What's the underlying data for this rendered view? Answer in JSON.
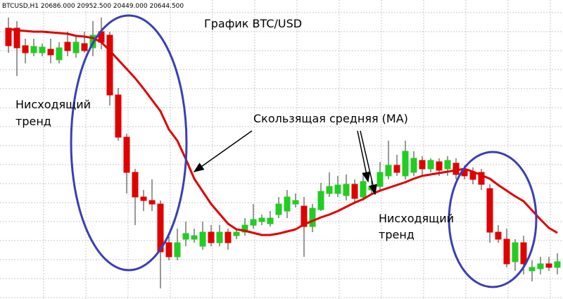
{
  "chart_data": {
    "type": "candlestick",
    "title": "График BTC/USD",
    "symbol_info": "BTCUSD,H1  20686.000 20952.500 20449.000 20644.500",
    "annotations": [
      "Нисходящий",
      "тренд",
      "Скользящая средняя (MA)",
      "Нисходящий",
      "тренд"
    ],
    "ylim": [
      0,
      425
    ],
    "grid": true,
    "up_color": "#22cc22",
    "down_color": "#e00000",
    "open": [
      385,
      385,
      360,
      350,
      350,
      355,
      340,
      365,
      350,
      363,
      357,
      380,
      375,
      290,
      230,
      180,
      145,
      140,
      135,
      80,
      60,
      85,
      85,
      75,
      95,
      80,
      95,
      90,
      95,
      105,
      110,
      107,
      120,
      125,
      135,
      132,
      103,
      127,
      150,
      150,
      147,
      163,
      145,
      155,
      160,
      175,
      190,
      175,
      180,
      197,
      185,
      195,
      185,
      193,
      183,
      180,
      180,
      157,
      95,
      85,
      53,
      80,
      40,
      43,
      50,
      45
    ],
    "high": [
      400,
      395,
      370,
      370,
      363,
      370,
      365,
      380,
      375,
      380,
      395,
      400,
      380,
      300,
      235,
      185,
      155,
      170,
      140,
      95,
      100,
      110,
      100,
      110,
      105,
      105,
      100,
      100,
      115,
      135,
      120,
      125,
      145,
      155,
      150,
      145,
      135,
      165,
      180,
      175,
      177,
      170,
      180,
      170,
      195,
      225,
      205,
      225,
      210,
      203,
      200,
      200,
      203,
      200,
      190,
      187,
      185,
      163,
      105,
      100,
      85,
      90,
      55,
      60,
      60,
      65
    ],
    "low": [
      350,
      317,
      335,
      345,
      345,
      335,
      335,
      345,
      343,
      350,
      345,
      355,
      275,
      225,
      150,
      105,
      125,
      125,
      15,
      55,
      55,
      75,
      80,
      70,
      75,
      75,
      70,
      85,
      90,
      100,
      105,
      103,
      115,
      115,
      130,
      60,
      95,
      125,
      145,
      145,
      140,
      135,
      140,
      150,
      155,
      170,
      175,
      170,
      175,
      175,
      180,
      175,
      175,
      170,
      170,
      163,
      155,
      80,
      80,
      45,
      40,
      35,
      25,
      35,
      40,
      35
    ],
    "close": [
      360,
      357,
      350,
      359,
      358,
      347,
      357,
      353,
      365,
      353,
      375,
      365,
      290,
      230,
      180,
      145,
      140,
      135,
      67,
      60,
      80,
      93,
      90,
      95,
      80,
      95,
      80,
      95,
      105,
      113,
      115,
      115,
      135,
      145,
      140,
      103,
      129,
      153,
      160,
      162,
      163,
      143,
      167,
      160,
      180,
      190,
      180,
      210,
      200,
      185,
      197,
      183,
      197,
      177,
      175,
      170,
      163,
      95,
      85,
      50,
      80,
      50,
      45,
      50,
      45,
      53
    ],
    "ma": {
      "color": "#e00000",
      "values": [
        384,
        382,
        381,
        380,
        380,
        379,
        378,
        377,
        374,
        373,
        371,
        365,
        353,
        340,
        327,
        314,
        299,
        283,
        267,
        241,
        225,
        199,
        171,
        153,
        135,
        121,
        107,
        99,
        97,
        94,
        91,
        91,
        93,
        96,
        99,
        106,
        111,
        116,
        120,
        125,
        131,
        137,
        142,
        149,
        154,
        158,
        162,
        166,
        171,
        175,
        177,
        179,
        181,
        183,
        185,
        181,
        176,
        171,
        162,
        154,
        146,
        139,
        126,
        113,
        101,
        94
      ]
    }
  }
}
